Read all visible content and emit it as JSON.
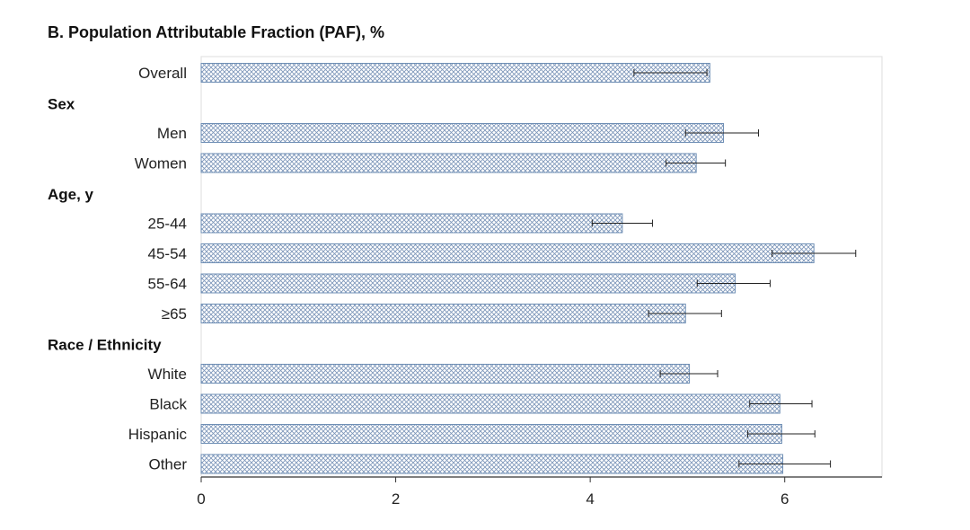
{
  "chart_data": {
    "type": "bar",
    "orientation": "horizontal",
    "title": "B. Population Attributable Fraction (PAF), %",
    "xlabel": "",
    "ylabel": "",
    "xlim": [
      0,
      7
    ],
    "x_ticks": [
      0,
      2,
      4,
      6
    ],
    "grid": false,
    "legend": "none",
    "bar_fill_pattern": "crosshatch",
    "bar_color": "#6f8fb5",
    "groups": [
      "Sex",
      "Age, y",
      "Race / Ethnicity"
    ],
    "rows": [
      {
        "kind": "bar",
        "label": "Overall",
        "value": 5.23,
        "ci_low": 4.45,
        "ci_high": 5.2
      },
      {
        "kind": "group",
        "label": "Sex"
      },
      {
        "kind": "bar",
        "label": "Men",
        "value": 5.37,
        "ci_low": 4.98,
        "ci_high": 5.73
      },
      {
        "kind": "bar",
        "label": "Women",
        "value": 5.09,
        "ci_low": 4.78,
        "ci_high": 5.39
      },
      {
        "kind": "group",
        "label": "Age, y"
      },
      {
        "kind": "bar",
        "label": "25-44",
        "value": 4.33,
        "ci_low": 4.02,
        "ci_high": 4.64
      },
      {
        "kind": "bar",
        "label": "45-54",
        "value": 6.3,
        "ci_low": 5.87,
        "ci_high": 6.73
      },
      {
        "kind": "bar",
        "label": "55-64",
        "value": 5.49,
        "ci_low": 5.1,
        "ci_high": 5.85
      },
      {
        "kind": "bar",
        "label": "≥65",
        "value": 4.98,
        "ci_low": 4.6,
        "ci_high": 5.35
      },
      {
        "kind": "group",
        "label": "Race / Ethnicity"
      },
      {
        "kind": "bar",
        "label": "White",
        "value": 5.02,
        "ci_low": 4.72,
        "ci_high": 5.31
      },
      {
        "kind": "bar",
        "label": "Black",
        "value": 5.95,
        "ci_low": 5.64,
        "ci_high": 6.28
      },
      {
        "kind": "bar",
        "label": "Hispanic",
        "value": 5.97,
        "ci_low": 5.62,
        "ci_high": 6.31
      },
      {
        "kind": "bar",
        "label": "Other",
        "value": 5.98,
        "ci_low": 5.53,
        "ci_high": 6.47
      }
    ]
  }
}
